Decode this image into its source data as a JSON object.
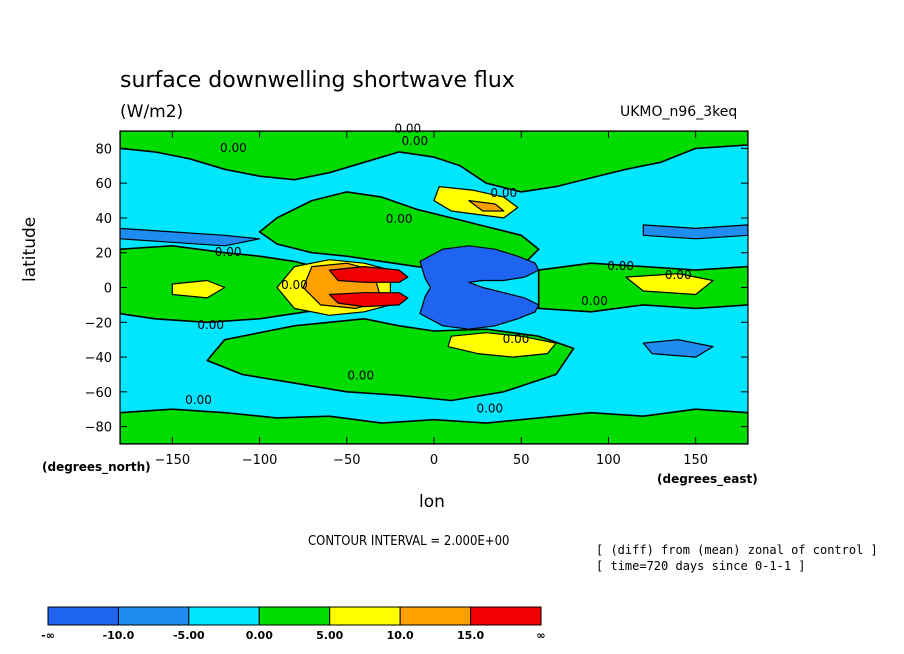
{
  "chart_data": {
    "type": "contour",
    "title": "surface downwelling shortwave flux",
    "units": "(W/m2)",
    "model": "UKMO_n96_3keq",
    "ylabel": "latitude",
    "y_unit": "(degrees_north)",
    "xlabel": "lon",
    "x_unit": "(degrees_east)",
    "xlim": [
      -180,
      180
    ],
    "ylim": [
      -90,
      90
    ],
    "x_ticks": [
      -150,
      -100,
      -50,
      0,
      50,
      100,
      150
    ],
    "y_ticks": [
      80,
      60,
      40,
      20,
      0,
      -20,
      -40,
      -60,
      -80
    ],
    "contour_interval": "CONTOUR INTERVAL = 2.000E+00",
    "notes": [
      "[ (diff) from (mean) zonal of control ]",
      "[ time=720 days since 0-1-1 ]"
    ],
    "contour_labels": [
      {
        "text": "0.00",
        "lon": -15,
        "lat": 89
      },
      {
        "text": "0.00",
        "lon": -11,
        "lat": 82
      },
      {
        "text": "0.00",
        "lon": -115,
        "lat": 78
      },
      {
        "text": "0.00",
        "lon": 40,
        "lat": 52
      },
      {
        "text": "0.00",
        "lon": -20,
        "lat": 37
      },
      {
        "text": "0.00",
        "lon": -118,
        "lat": 18
      },
      {
        "text": "0.00",
        "lon": 107,
        "lat": 10
      },
      {
        "text": "0.00",
        "lon": 140,
        "lat": 5
      },
      {
        "text": "0.00",
        "lon": -80,
        "lat": -1
      },
      {
        "text": "0.00",
        "lon": 92,
        "lat": -10
      },
      {
        "text": "0.00",
        "lon": -128,
        "lat": -24
      },
      {
        "text": "0.00",
        "lon": 47,
        "lat": -32
      },
      {
        "text": "0.00",
        "lon": -42,
        "lat": -53
      },
      {
        "text": "0.00",
        "lon": -135,
        "lat": -67
      },
      {
        "text": "0.00",
        "lon": 32,
        "lat": -72
      }
    ],
    "colorbar": {
      "colors": [
        "#1e64f0",
        "#1e8cf0",
        "#00e6ff",
        "#00dc00",
        "#ffff00",
        "#ffa000",
        "#f00000"
      ],
      "labels": [
        "-∞",
        "-10.0",
        "-5.00",
        "0.00",
        "5.00",
        "10.0",
        "15.0",
        "∞"
      ]
    },
    "regions": [
      {
        "class": "positive-land",
        "level": "0-5",
        "color": "#00dc00",
        "polygon": [
          [
            -180,
            90
          ],
          [
            180,
            90
          ],
          [
            180,
            82
          ],
          [
            150,
            80
          ],
          [
            130,
            72
          ],
          [
            110,
            68
          ],
          [
            90,
            63
          ],
          [
            70,
            58
          ],
          [
            50,
            55
          ],
          [
            30,
            60
          ],
          [
            15,
            70
          ],
          [
            0,
            75
          ],
          [
            -20,
            78
          ],
          [
            -40,
            72
          ],
          [
            -60,
            66
          ],
          [
            -80,
            62
          ],
          [
            -100,
            64
          ],
          [
            -120,
            68
          ],
          [
            -140,
            74
          ],
          [
            -160,
            78
          ],
          [
            -180,
            80
          ]
        ]
      },
      {
        "class": "positive-land",
        "level": "0-5",
        "color": "#00dc00",
        "polygon": [
          [
            -90,
            40
          ],
          [
            -70,
            50
          ],
          [
            -50,
            55
          ],
          [
            -30,
            52
          ],
          [
            -10,
            45
          ],
          [
            10,
            40
          ],
          [
            30,
            35
          ],
          [
            50,
            30
          ],
          [
            60,
            22
          ],
          [
            50,
            12
          ],
          [
            35,
            8
          ],
          [
            10,
            10
          ],
          [
            -10,
            12
          ],
          [
            -30,
            15
          ],
          [
            -50,
            18
          ],
          [
            -70,
            20
          ],
          [
            -90,
            25
          ],
          [
            -100,
            32
          ]
        ]
      },
      {
        "class": "positive-land",
        "level": "0-5",
        "color": "#00dc00",
        "polygon": [
          [
            -180,
            22
          ],
          [
            -150,
            24
          ],
          [
            -120,
            20
          ],
          [
            -100,
            18
          ],
          [
            -80,
            15
          ],
          [
            -60,
            10
          ],
          [
            -40,
            8
          ],
          [
            -40,
            -8
          ],
          [
            -60,
            -12
          ],
          [
            -80,
            -15
          ],
          [
            -100,
            -18
          ],
          [
            -130,
            -20
          ],
          [
            -160,
            -18
          ],
          [
            -180,
            -15
          ]
        ]
      },
      {
        "class": "positive-land",
        "level": "0-5",
        "color": "#00dc00",
        "polygon": [
          [
            60,
            10
          ],
          [
            90,
            14
          ],
          [
            120,
            12
          ],
          [
            150,
            10
          ],
          [
            180,
            12
          ],
          [
            180,
            -10
          ],
          [
            150,
            -12
          ],
          [
            120,
            -10
          ],
          [
            90,
            -14
          ],
          [
            60,
            -12
          ]
        ]
      },
      {
        "class": "positive-land",
        "level": "0-5",
        "color": "#00dc00",
        "polygon": [
          [
            -80,
            -22
          ],
          [
            -60,
            -20
          ],
          [
            -40,
            -18
          ],
          [
            -20,
            -22
          ],
          [
            0,
            -25
          ],
          [
            30,
            -24
          ],
          [
            60,
            -28
          ],
          [
            80,
            -35
          ],
          [
            70,
            -50
          ],
          [
            40,
            -60
          ],
          [
            10,
            -65
          ],
          [
            -20,
            -62
          ],
          [
            -50,
            -60
          ],
          [
            -80,
            -55
          ],
          [
            -110,
            -50
          ],
          [
            -130,
            -42
          ],
          [
            -120,
            -30
          ]
        ]
      },
      {
        "class": "positive-land",
        "level": "0-5",
        "color": "#00dc00",
        "polygon": [
          [
            -180,
            -72
          ],
          [
            -150,
            -70
          ],
          [
            -120,
            -72
          ],
          [
            -90,
            -75
          ],
          [
            -60,
            -74
          ],
          [
            -30,
            -78
          ],
          [
            0,
            -76
          ],
          [
            30,
            -78
          ],
          [
            60,
            -75
          ],
          [
            90,
            -72
          ],
          [
            120,
            -74
          ],
          [
            150,
            -70
          ],
          [
            180,
            -72
          ],
          [
            180,
            -90
          ],
          [
            -180,
            -90
          ]
        ]
      },
      {
        "class": "positive",
        "level": "5-10",
        "color": "#ffff00",
        "polygon": [
          [
            3,
            58
          ],
          [
            22,
            56
          ],
          [
            40,
            52
          ],
          [
            48,
            46
          ],
          [
            40,
            40
          ],
          [
            25,
            42
          ],
          [
            10,
            44
          ],
          [
            0,
            50
          ]
        ]
      },
      {
        "class": "positive",
        "level": "5-10",
        "color": "#ffff00",
        "polygon": [
          [
            -80,
            12
          ],
          [
            -60,
            16
          ],
          [
            -40,
            14
          ],
          [
            -25,
            10
          ],
          [
            -25,
            -10
          ],
          [
            -40,
            -14
          ],
          [
            -60,
            -16
          ],
          [
            -80,
            -12
          ],
          [
            -90,
            0
          ]
        ]
      },
      {
        "class": "positive",
        "level": "5-10",
        "color": "#ffff00",
        "polygon": [
          [
            10,
            -28
          ],
          [
            30,
            -26
          ],
          [
            50,
            -28
          ],
          [
            70,
            -32
          ],
          [
            65,
            -38
          ],
          [
            45,
            -40
          ],
          [
            25,
            -38
          ],
          [
            8,
            -34
          ]
        ]
      },
      {
        "class": "positive",
        "level": "5-10",
        "color": "#ffff00",
        "polygon": [
          [
            -150,
            2
          ],
          [
            -130,
            4
          ],
          [
            -120,
            0
          ],
          [
            -130,
            -6
          ],
          [
            -150,
            -4
          ]
        ]
      },
      {
        "class": "positive",
        "level": "5-10",
        "color": "#ffff00",
        "polygon": [
          [
            110,
            6
          ],
          [
            140,
            8
          ],
          [
            160,
            4
          ],
          [
            150,
            -4
          ],
          [
            120,
            -2
          ]
        ]
      },
      {
        "class": "positive",
        "level": "10-15",
        "color": "#ffa000",
        "polygon": [
          [
            -70,
            12
          ],
          [
            -50,
            14
          ],
          [
            -35,
            10
          ],
          [
            -30,
            -8
          ],
          [
            -45,
            -12
          ],
          [
            -65,
            -10
          ],
          [
            -75,
            0
          ]
        ]
      },
      {
        "class": "positive",
        "level": "10-15",
        "color": "#ffa000",
        "polygon": [
          [
            20,
            50
          ],
          [
            35,
            48
          ],
          [
            40,
            44
          ],
          [
            28,
            44
          ]
        ]
      },
      {
        "class": "positive",
        "level": ">15",
        "color": "#f00000",
        "polygon": [
          [
            -60,
            10
          ],
          [
            -40,
            12
          ],
          [
            -20,
            10
          ],
          [
            -15,
            6
          ],
          [
            -20,
            3
          ],
          [
            -40,
            3
          ],
          [
            -55,
            4
          ]
        ]
      },
      {
        "class": "positive",
        "level": ">15",
        "color": "#f00000",
        "polygon": [
          [
            -60,
            -4
          ],
          [
            -40,
            -3
          ],
          [
            -20,
            -3
          ],
          [
            -15,
            -6
          ],
          [
            -20,
            -10
          ],
          [
            -40,
            -11
          ],
          [
            -55,
            -9
          ]
        ]
      },
      {
        "class": "negative",
        "level": "<-10",
        "color": "#1e64f0",
        "polygon": [
          [
            -5,
            5
          ],
          [
            -8,
            15
          ],
          [
            5,
            22
          ],
          [
            20,
            24
          ],
          [
            35,
            22
          ],
          [
            48,
            18
          ],
          [
            58,
            14
          ],
          [
            60,
            10
          ],
          [
            52,
            6
          ],
          [
            40,
            4
          ],
          [
            28,
            4
          ],
          [
            20,
            3
          ],
          [
            28,
            0
          ],
          [
            40,
            -3
          ],
          [
            52,
            -6
          ],
          [
            60,
            -10
          ],
          [
            58,
            -14
          ],
          [
            48,
            -18
          ],
          [
            35,
            -22
          ],
          [
            20,
            -24
          ],
          [
            5,
            -22
          ],
          [
            -8,
            -15
          ],
          [
            -5,
            -5
          ],
          [
            -2,
            0
          ]
        ]
      },
      {
        "class": "negative",
        "level": "-10--5",
        "color": "#1e8cf0",
        "polygon": [
          [
            -180,
            34
          ],
          [
            -150,
            32
          ],
          [
            -120,
            30
          ],
          [
            -100,
            28
          ],
          [
            -120,
            24
          ],
          [
            -150,
            26
          ],
          [
            -180,
            28
          ]
        ]
      },
      {
        "class": "negative",
        "level": "-10--5",
        "color": "#1e8cf0",
        "polygon": [
          [
            120,
            36
          ],
          [
            150,
            34
          ],
          [
            180,
            36
          ],
          [
            180,
            30
          ],
          [
            150,
            28
          ],
          [
            120,
            30
          ]
        ]
      },
      {
        "class": "negative",
        "level": "-10--5",
        "color": "#1e8cf0",
        "polygon": [
          [
            120,
            -32
          ],
          [
            140,
            -30
          ],
          [
            160,
            -34
          ],
          [
            150,
            -40
          ],
          [
            125,
            -38
          ]
        ]
      }
    ]
  }
}
